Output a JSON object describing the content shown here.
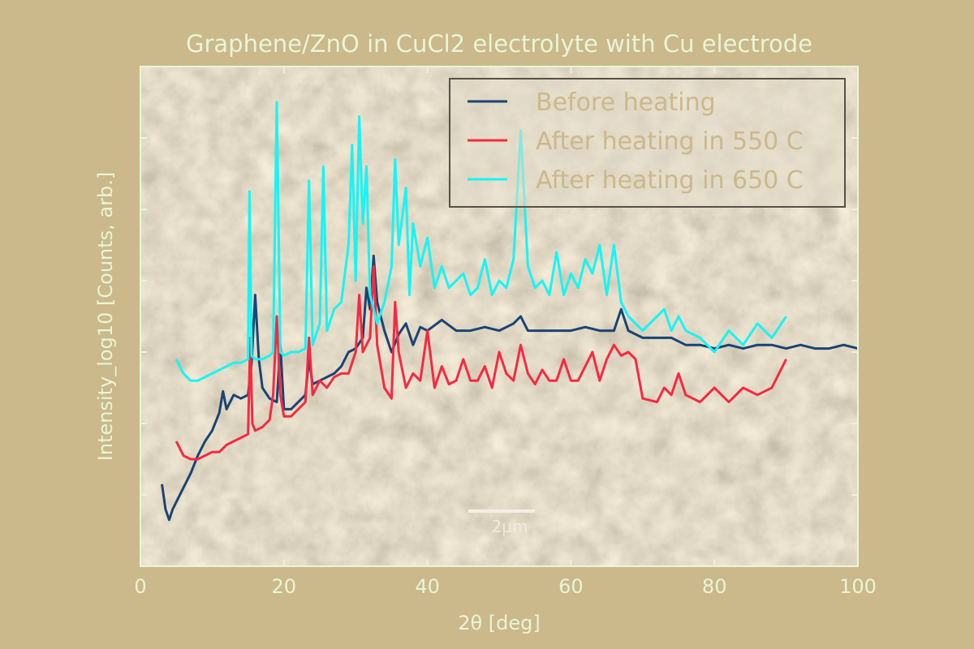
{
  "chart_data": {
    "type": "line",
    "title": "Graphene/ZnO in CuCl2 electrolyte with Cu electrode",
    "xlabel": "2θ [deg]",
    "ylabel": "Intensity_log10 [Counts, arb.]",
    "xlim": [
      0,
      100
    ],
    "ylim": [
      0,
      7
    ],
    "x_ticks": [
      0,
      20,
      40,
      60,
      80,
      100
    ],
    "x_tick_labels": [
      "0",
      "20",
      "40",
      "60",
      "80",
      "100"
    ],
    "y_ticks": [
      1,
      2,
      3,
      4,
      5,
      6
    ],
    "y_tick_labels_shown": false,
    "grid": false,
    "legend_position": "top-right",
    "background_image": {
      "description": "SEM micrograph",
      "scale_bar_text": "2μm"
    },
    "colors": {
      "background": "#cbb88b",
      "text": "#e8f6d6",
      "legend_text": "#cbb88b"
    },
    "series": [
      {
        "name": "Before heating",
        "color": "#1a4474",
        "x": [
          3,
          3.5,
          4,
          4.5,
          5,
          6,
          7,
          8,
          9,
          10,
          11,
          11.5,
          12,
          13,
          14,
          15,
          15.5,
          16,
          16.5,
          17,
          18,
          19,
          19.5,
          20,
          21,
          22,
          23,
          23.5,
          24,
          25,
          26,
          27,
          28,
          29,
          30,
          31,
          31.5,
          32,
          32.5,
          33,
          34,
          35,
          36,
          37,
          38,
          39,
          40,
          42,
          44,
          46,
          48,
          50,
          52,
          53,
          54,
          56,
          58,
          60,
          62,
          64,
          66,
          67,
          68,
          70,
          72,
          74,
          76,
          78,
          80,
          82,
          84,
          86,
          88,
          90,
          92,
          94,
          96,
          98,
          100
        ],
        "y": [
          1.15,
          0.8,
          0.65,
          0.8,
          0.9,
          1.1,
          1.3,
          1.55,
          1.75,
          1.9,
          2.15,
          2.45,
          2.2,
          2.4,
          2.35,
          2.4,
          2.85,
          3.8,
          2.9,
          2.5,
          2.35,
          2.3,
          3.1,
          2.2,
          2.2,
          2.3,
          2.4,
          2.9,
          2.55,
          2.6,
          2.65,
          2.7,
          2.8,
          3.0,
          3.05,
          3.2,
          3.9,
          3.6,
          4.35,
          3.7,
          3.3,
          3.0,
          3.25,
          3.4,
          3.1,
          3.35,
          3.3,
          3.45,
          3.3,
          3.3,
          3.35,
          3.3,
          3.4,
          3.5,
          3.3,
          3.3,
          3.3,
          3.3,
          3.35,
          3.3,
          3.3,
          3.6,
          3.3,
          3.2,
          3.2,
          3.2,
          3.1,
          3.1,
          3.05,
          3.1,
          3.05,
          3.1,
          3.1,
          3.05,
          3.1,
          3.05,
          3.05,
          3.1,
          3.05
        ]
      },
      {
        "name": "After heating in 550 C",
        "color": "#f52a42",
        "x": [
          5,
          6,
          7,
          8,
          9,
          10,
          11,
          12,
          13,
          14,
          15,
          15.3,
          15.6,
          16,
          17,
          18,
          18.5,
          19,
          19.5,
          20,
          21,
          22,
          23,
          23.5,
          24,
          25,
          26,
          27,
          28,
          29,
          30,
          30.5,
          31,
          32,
          32.5,
          33,
          34,
          35,
          35.5,
          36,
          37,
          38,
          39,
          40,
          41,
          42,
          43,
          44,
          45,
          46,
          47,
          48,
          49,
          50,
          51,
          52,
          53,
          54,
          55,
          56,
          57,
          58,
          59,
          60,
          61,
          62,
          63,
          64,
          65,
          66,
          67,
          68,
          69,
          70,
          72,
          73,
          74,
          75,
          76,
          78,
          80,
          82,
          84,
          86,
          88,
          90
        ],
        "y": [
          1.75,
          1.55,
          1.5,
          1.5,
          1.55,
          1.6,
          1.6,
          1.7,
          1.75,
          1.8,
          1.85,
          3.2,
          2.0,
          1.9,
          1.95,
          2.05,
          2.4,
          3.5,
          2.4,
          2.1,
          2.1,
          2.2,
          2.3,
          3.2,
          2.4,
          2.6,
          2.5,
          2.65,
          2.7,
          2.7,
          3.0,
          3.8,
          3.0,
          3.2,
          4.2,
          3.1,
          2.5,
          2.35,
          3.7,
          3.0,
          2.5,
          2.7,
          2.6,
          3.3,
          2.5,
          2.8,
          2.55,
          2.6,
          2.9,
          2.6,
          2.6,
          2.8,
          2.5,
          3.0,
          2.7,
          2.6,
          3.1,
          2.7,
          2.55,
          2.75,
          2.6,
          2.6,
          2.9,
          2.6,
          2.6,
          2.8,
          3.0,
          2.6,
          2.9,
          3.1,
          2.95,
          3.0,
          2.9,
          2.35,
          2.3,
          2.5,
          2.4,
          2.7,
          2.4,
          2.3,
          2.5,
          2.3,
          2.5,
          2.4,
          2.5,
          2.9
        ]
      },
      {
        "name": "After heating in 650 C",
        "color": "#16f5f5",
        "x": [
          5,
          6,
          7,
          8,
          9,
          10,
          11,
          12,
          13,
          14,
          15,
          15.2,
          15.5,
          16,
          17,
          18,
          18.5,
          19,
          19.5,
          20,
          21,
          22,
          23,
          23.5,
          24,
          25,
          25.5,
          26,
          27,
          28,
          29,
          29.5,
          30,
          30.5,
          31,
          31.5,
          32,
          33,
          34,
          35,
          35.5,
          36,
          37,
          37.5,
          38,
          39,
          40,
          41,
          42,
          43,
          44,
          45,
          46,
          47,
          48,
          49,
          50,
          51,
          52,
          53,
          54,
          55,
          56,
          57,
          58,
          59,
          60,
          61,
          62,
          63,
          64,
          65,
          66,
          67,
          68,
          70,
          72,
          73,
          74,
          75,
          76,
          78,
          80,
          82,
          84,
          86,
          88,
          90
        ],
        "y": [
          2.9,
          2.7,
          2.6,
          2.6,
          2.65,
          2.7,
          2.75,
          2.8,
          2.85,
          2.85,
          2.9,
          5.25,
          2.95,
          2.9,
          2.9,
          2.95,
          3.0,
          6.5,
          3.0,
          2.95,
          3.0,
          3.0,
          3.05,
          5.4,
          3.1,
          3.4,
          5.6,
          3.3,
          3.6,
          3.7,
          4.5,
          5.9,
          4.0,
          6.3,
          4.8,
          5.6,
          3.8,
          3.4,
          3.7,
          4.2,
          5.7,
          4.5,
          5.3,
          3.8,
          4.8,
          4.2,
          4.6,
          3.9,
          4.2,
          3.9,
          4.0,
          4.1,
          3.8,
          3.9,
          4.3,
          3.8,
          4.0,
          3.9,
          4.3,
          6.1,
          4.2,
          3.9,
          4.0,
          3.8,
          4.4,
          3.8,
          4.1,
          3.9,
          4.3,
          4.1,
          4.5,
          3.8,
          4.5,
          3.7,
          3.5,
          3.3,
          3.5,
          3.6,
          3.3,
          3.5,
          3.3,
          3.2,
          3.0,
          3.3,
          3.1,
          3.4,
          3.2,
          3.5
        ]
      }
    ]
  }
}
